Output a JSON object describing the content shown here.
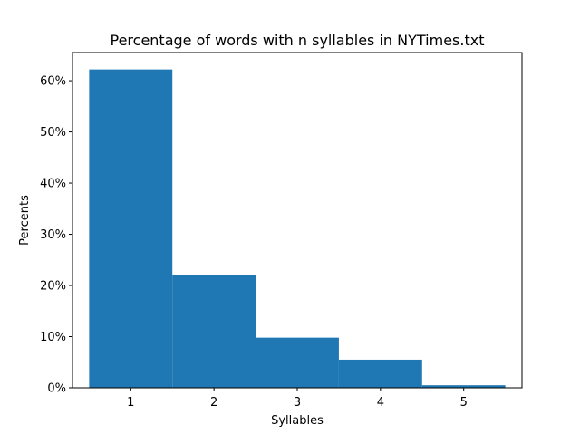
{
  "chart_data": {
    "type": "bar",
    "title": "Percentage of words with n syllables in NYTimes.txt",
    "xlabel": "Syllables",
    "ylabel": "Percents",
    "categories": [
      "1",
      "2",
      "3",
      "4",
      "5"
    ],
    "x": [
      1,
      2,
      3,
      4,
      5
    ],
    "values": [
      62.2,
      22.0,
      9.8,
      5.5,
      0.5
    ],
    "xlim": [
      0.3,
      5.7
    ],
    "ylim": [
      0,
      65.5
    ],
    "yticks": [
      0,
      10,
      20,
      30,
      40,
      50,
      60
    ],
    "ytick_labels": [
      "0%",
      "10%",
      "20%",
      "30%",
      "40%",
      "50%",
      "60%"
    ],
    "bar_color": "#1f77b4",
    "grid": false,
    "legend": "none"
  }
}
